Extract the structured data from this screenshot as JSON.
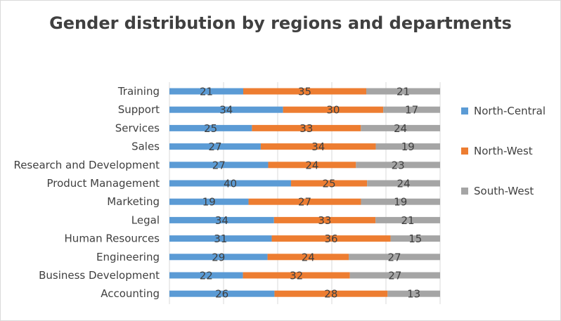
{
  "chart_data": {
    "type": "bar",
    "orientation": "horizontal",
    "stacked": "100%",
    "title": "Gender distribution by regions and departments",
    "categories": [
      "Training",
      "Support",
      "Services",
      "Sales",
      "Research and Development",
      "Product Management",
      "Marketing",
      "Legal",
      "Human Resources",
      "Engineering",
      "Business Development",
      "Accounting"
    ],
    "series": [
      {
        "name": "North-Central",
        "color": "#5b9bd5",
        "values": [
          21,
          34,
          25,
          27,
          27,
          40,
          19,
          34,
          31,
          29,
          22,
          26
        ]
      },
      {
        "name": "North-West",
        "color": "#ed7d31",
        "values": [
          35,
          30,
          33,
          34,
          24,
          25,
          27,
          33,
          36,
          24,
          32,
          28
        ]
      },
      {
        "name": "South-West",
        "color": "#a5a5a5",
        "values": [
          21,
          17,
          24,
          19,
          23,
          24,
          19,
          21,
          15,
          27,
          27,
          13
        ]
      }
    ],
    "legend_position": "right",
    "grid": true,
    "data_labels": true
  }
}
